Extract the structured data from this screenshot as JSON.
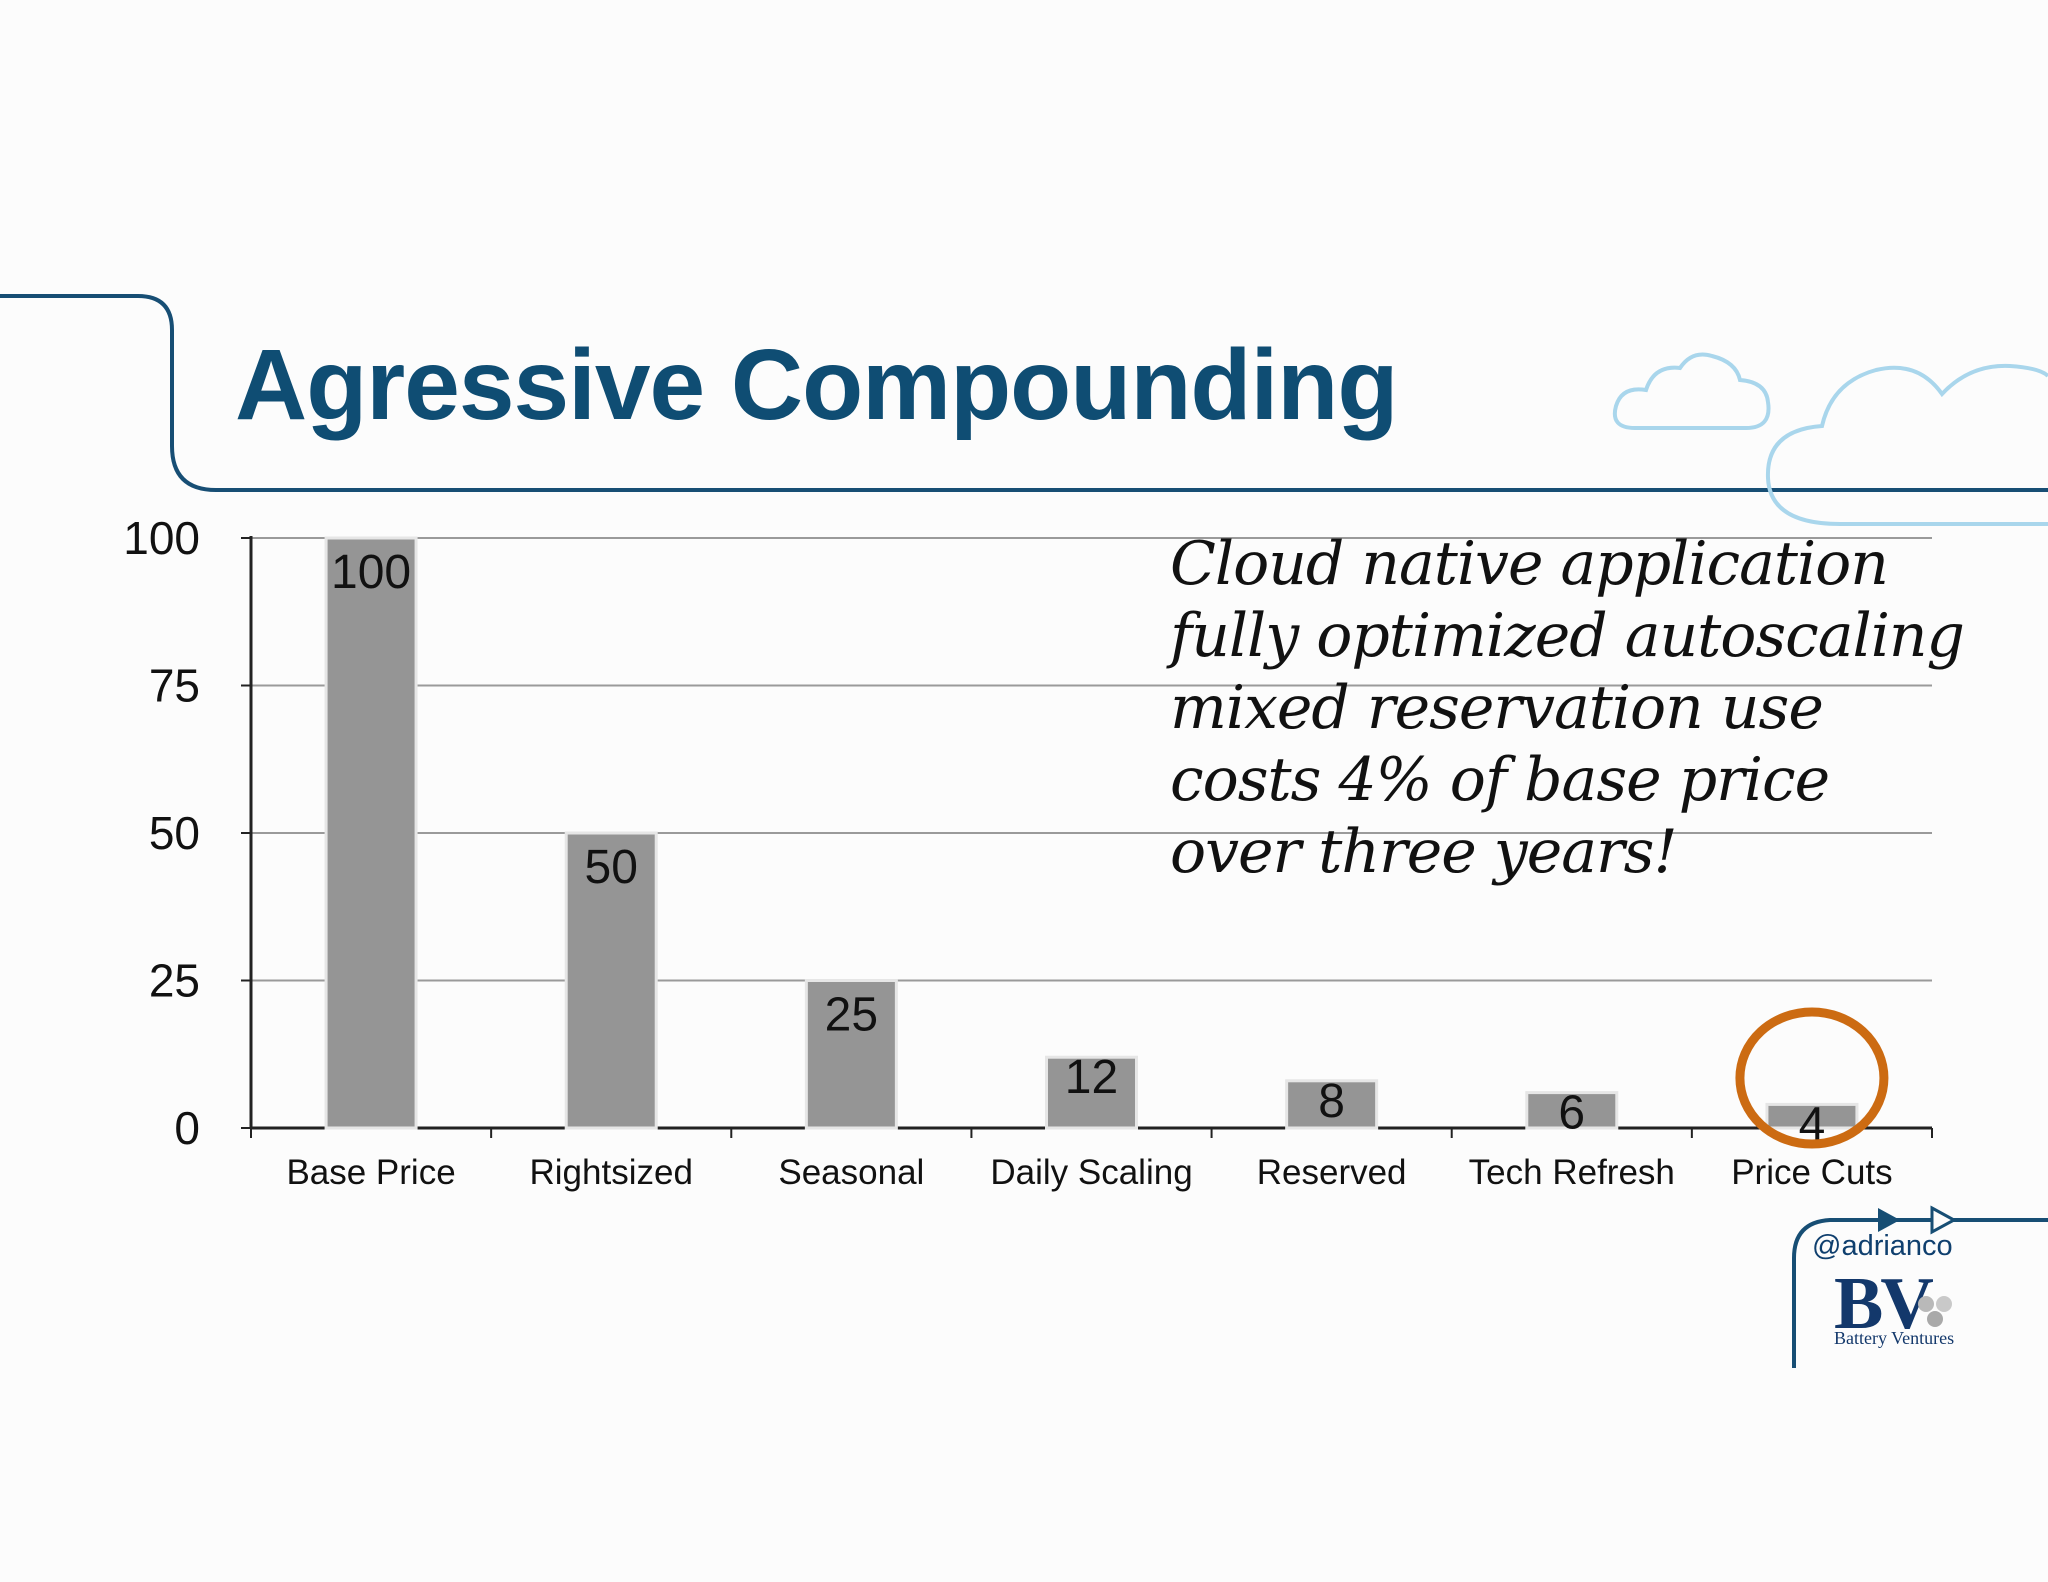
{
  "slide": {
    "title": "Agressive Compounding",
    "callout_lines": [
      "Cloud native application",
      "fully optimized autoscaling",
      "mixed reservation use",
      "costs 4% of base price",
      "over three years!"
    ],
    "handle": "@adrianco",
    "logo_letters": "BV",
    "logo_name": "Battery Ventures",
    "colors": {
      "title": "#0f4d73",
      "bar": "#959595",
      "highlight_ring": "#cc6b12",
      "cloud_outline": "#a9d6ec",
      "frame_line": "#174e74"
    },
    "decor_icons": [
      "cloud-icon",
      "cloud-icon",
      "arrow-icon",
      "arrow-icon"
    ]
  },
  "chart_data": {
    "type": "bar",
    "categories": [
      "Base Price",
      "Rightsized",
      "Seasonal",
      "Daily Scaling",
      "Reserved",
      "Tech Refresh",
      "Price Cuts"
    ],
    "values": [
      100,
      50,
      25,
      12,
      8,
      6,
      4
    ],
    "data_labels": [
      "100",
      "50",
      "25",
      "12",
      "8",
      "6",
      "4"
    ],
    "ylim": [
      0,
      100
    ],
    "yticks": [
      0,
      25,
      50,
      75,
      100
    ],
    "ytick_labels": [
      "0",
      "25",
      "50",
      "75",
      "100"
    ],
    "grid": true,
    "highlighted_category": "Price Cuts",
    "title": "",
    "xlabel": "",
    "ylabel": ""
  }
}
